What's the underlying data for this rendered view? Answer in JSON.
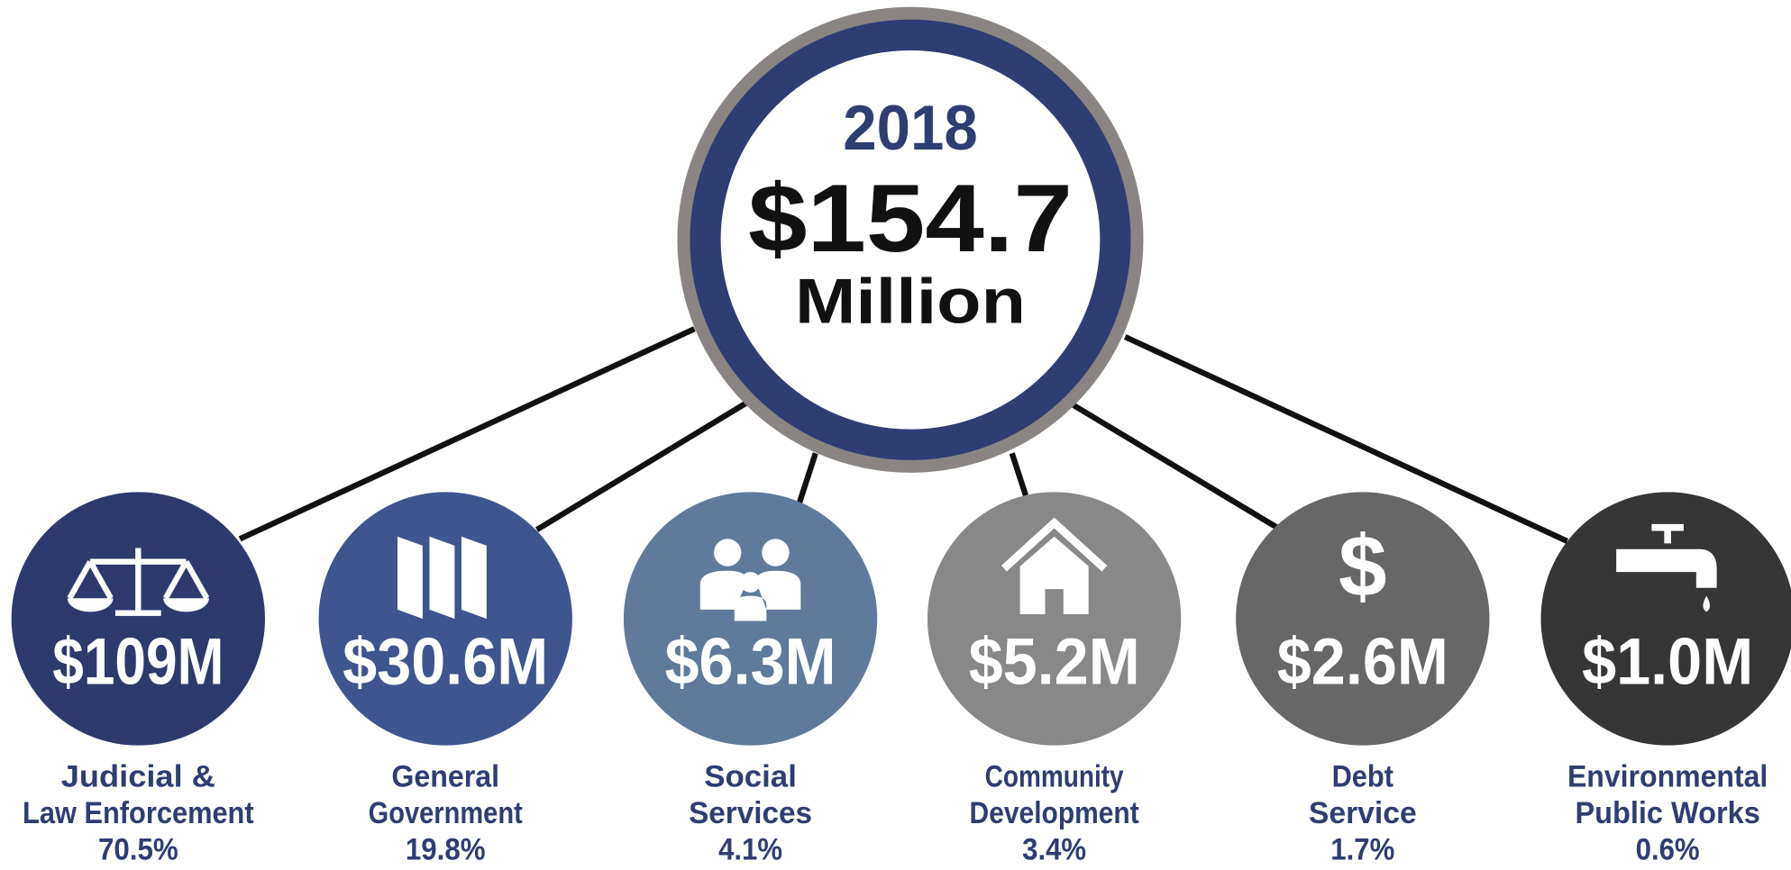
{
  "header": {
    "year": "2018",
    "amount": "$154.7",
    "unit": "Million"
  },
  "items": [
    {
      "amount": "$109M",
      "label": [
        "Judicial &",
        "Law Enforcement"
      ],
      "percent": "70.5%"
    },
    {
      "amount": "$30.6M",
      "label": [
        "General",
        "Government"
      ],
      "percent": "19.8%"
    },
    {
      "amount": "$6.3M",
      "label": [
        "Social",
        "Services"
      ],
      "percent": "4.1%"
    },
    {
      "amount": "$5.2M",
      "label": [
        "Community",
        "Development"
      ],
      "percent": "3.4%"
    },
    {
      "amount": "$2.6M",
      "label": [
        "Debt",
        "Service"
      ],
      "percent": "1.7%"
    },
    {
      "amount": "$1.0M",
      "label": [
        "Environmental",
        "Public Works"
      ],
      "percent": "0.6%"
    }
  ]
}
